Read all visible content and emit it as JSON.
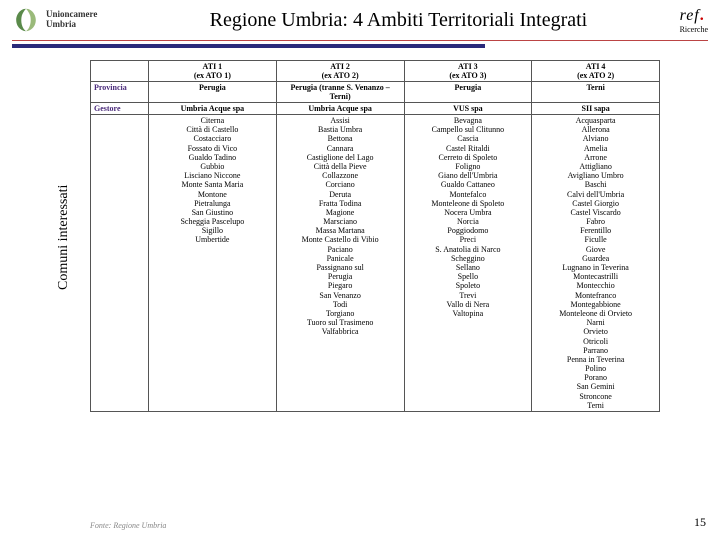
{
  "header": {
    "org_line1": "Unioncamere",
    "org_line2": "Umbria",
    "title": "Regione Umbria: 4 Ambiti Territoriali Integrati",
    "ref_text": "ref",
    "ref_sub": "Ricerche"
  },
  "hr": {
    "thin_color": "#b44444",
    "thick_color": "#2a2a7a",
    "thick_width_pct": 68
  },
  "table": {
    "col_labels": [
      {
        "top": "ATI 1",
        "sub": "(ex ATO 1)"
      },
      {
        "top": "ATI 2",
        "sub": "(ex ATO 2)"
      },
      {
        "top": "ATI 3",
        "sub": "(ex ATO 3)"
      },
      {
        "top": "ATI 4",
        "sub": "(ex ATO 2)"
      }
    ],
    "rows": {
      "provincia": {
        "label": "Provincia",
        "cells": [
          "Perugia",
          "Perugia (tranne S. Venanzo – Terni)",
          "Perugia",
          "Terni"
        ]
      },
      "gestore": {
        "label": "Gestore",
        "cells": [
          "Umbria Acque spa",
          "Umbria Acque spa",
          "VUS spa",
          "SII sapa"
        ]
      }
    },
    "comuni_label": "Comuni interessati",
    "comuni": [
      [
        "Citerna",
        "Città di Castello",
        "Costacciaro",
        "Fossato di Vico",
        "Gualdo Tadino",
        "Gubbio",
        "Lisciano Niccone",
        "Monte Santa Maria",
        "Montone",
        "Pietralunga",
        "San Giustino",
        "Scheggia Pascelupo",
        "Sigillo",
        "Umbertide"
      ],
      [
        "Assisi",
        "Bastia Umbra",
        "Bettona",
        "Cannara",
        "Castiglione del Lago",
        "Città della Pieve",
        "Collazzone",
        "Corciano",
        "Deruta",
        "Fratta Todina",
        "Magione",
        "Marsciano",
        "Massa Martana",
        "Monte Castello di Vibio",
        "Paciano",
        "Panicale",
        "Passignano sul",
        "Perugia",
        "Piegaro",
        "San Venanzo",
        "Todi",
        "Torgiano",
        "Tuoro sul Trasimeno",
        "Valfabbrica"
      ],
      [
        "Bevagna",
        "Campello sul Clitunno",
        "Cascia",
        "Castel Ritaldi",
        "Cerreto di Spoleto",
        "Foligno",
        "Giano dell'Umbria",
        "Gualdo Cattaneo",
        "Montefalco",
        "Monteleone di Spoleto",
        "Nocera Umbra",
        "Norcia",
        "Poggiodomo",
        "Preci",
        "S. Anatolia di Narco",
        "Scheggino",
        "Sellano",
        "Spello",
        "Spoleto",
        "Trevi",
        "Vallo di Nera",
        "Valtopina"
      ],
      [
        "Acquasparta",
        "Allerona",
        "Alviano",
        "Amelia",
        "Arrone",
        "Attigliano",
        "Avigliano Umbro",
        "Baschi",
        "Calvi dell'Umbria",
        "Castel Giorgio",
        "Castel Viscardo",
        "Fabro",
        "Ferentillo",
        "Ficulle",
        "Giove",
        "Guardea",
        "Lugnano in Teverina",
        "Montecastrilli",
        "Montecchio",
        "Montefranco",
        "Montegabbione",
        "Monteleone di Orvieto",
        "Narni",
        "Orvieto",
        "Otricoli",
        "Parrano",
        "Penna in Teverina",
        "Polino",
        "Porano",
        "San Gemini",
        "Stroncone",
        "Terni"
      ]
    ]
  },
  "source": "Fonte: Regione Umbria",
  "page_number": "15"
}
